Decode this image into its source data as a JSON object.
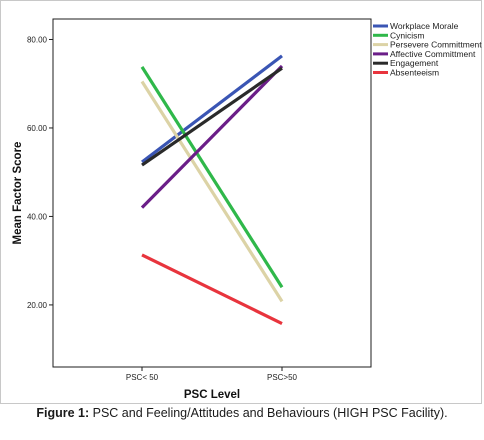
{
  "chart_data": {
    "type": "line",
    "xlabel": "PSC Level",
    "ylabel": "Mean Factor Score",
    "categories": [
      "PSC< 50",
      "PSC>50"
    ],
    "ylim": [
      0,
      80
    ],
    "yticks": [
      "20.00",
      "40.00",
      "60.00",
      "80.00"
    ],
    "ytick_values": [
      20,
      40,
      60,
      80
    ],
    "grid": false,
    "legend_position": "top-right",
    "series": [
      {
        "name": "Workplace Morale",
        "values": [
          52.3,
          76.3
        ],
        "color": "#3a55b4"
      },
      {
        "name": "Cynicism",
        "values": [
          73.8,
          24.0
        ],
        "color": "#2fb84a"
      },
      {
        "name": "Persevere Committment",
        "values": [
          70.5,
          20.8
        ],
        "color": "#dcd3a6"
      },
      {
        "name": "Affective Committment",
        "values": [
          42.0,
          74.0
        ],
        "color": "#6b1e88"
      },
      {
        "name": "Engagement",
        "values": [
          51.6,
          73.5
        ],
        "color": "#2a2a2a"
      },
      {
        "name": "Absenteeism",
        "values": [
          31.3,
          15.8
        ],
        "color": "#e8343d"
      }
    ]
  },
  "caption": {
    "label": "Figure 1:",
    "text": " PSC and Feeling/Attitudes and Behaviours (HIGH PSC Facility)."
  }
}
